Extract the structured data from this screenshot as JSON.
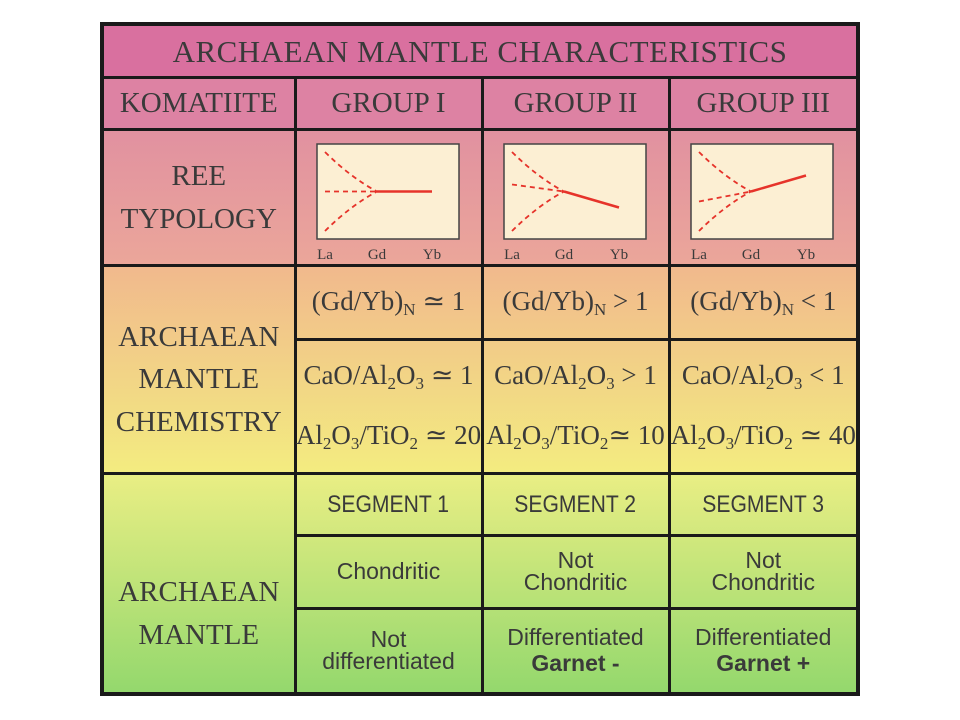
{
  "title": "ARCHAEAN   MANTLE CHARACTERISTICS",
  "header": {
    "row_label": "KOMATIITE",
    "groups": [
      "GROUP I",
      "GROUP II",
      "GROUP III"
    ]
  },
  "ree": {
    "row_label_lines": [
      "REE",
      "TYPOLOGY"
    ],
    "axis_labels": [
      "La",
      "Gd",
      "Yb"
    ],
    "patterns": [
      "flat",
      "decreasing",
      "increasing"
    ]
  },
  "chemistry": {
    "row_label_lines": [
      "ARCHAEAN",
      "MANTLE",
      "CHEMISTRY"
    ],
    "gdyb": {
      "label": "(Gd/Yb)",
      "sub": "N",
      "relations": [
        "≃ 1",
        "> 1",
        "< 1"
      ]
    },
    "cao": {
      "label_a": "CaO/Al",
      "sub_a": "2",
      "label_b": "O",
      "sub_b": "3",
      "relations": [
        "≃ 1",
        "> 1",
        "< 1"
      ]
    },
    "al": {
      "label_a": "Al",
      "sub_a": "2",
      "label_b": "O",
      "sub_b": "3",
      "label_c": "/TiO",
      "sub_c": "2",
      "relations": [
        "≃ 20",
        "≃ 10",
        "≃ 40"
      ]
    }
  },
  "mantle": {
    "row_label_lines": [
      "ARCHAEAN",
      "MANTLE"
    ],
    "segments": [
      "SEGMENT 1",
      "SEGMENT 2",
      "SEGMENT 3"
    ],
    "chondritic": [
      [
        "Chondritic"
      ],
      [
        "Not",
        "Chondritic"
      ],
      [
        "Not",
        "Chondritic"
      ]
    ],
    "differentiation": [
      {
        "line1": "Not",
        "line2": "differentiated",
        "bold": false
      },
      {
        "line1": "Differentiated",
        "line2": "Garnet -",
        "bold": true
      },
      {
        "line1": "Differentiated",
        "line2": "Garnet +",
        "bold": true
      }
    ]
  },
  "colors": {
    "border": "#1a1a1a",
    "title_bg": "#d9709f",
    "header_bg": "#dd82a3",
    "ree_bg_top": "#e191a0",
    "ree_bg_bottom": "#eba69a",
    "chem_bg_top": "#f1b98d",
    "chem_bg_bottom": "#f3ec80",
    "mantle_bg_top": "#e9ee84",
    "mantle_bg_bottom": "#94d86d",
    "plot_bg": "#fcefd3",
    "ree_line": "#e6332a",
    "text": "#3a3a3a"
  }
}
